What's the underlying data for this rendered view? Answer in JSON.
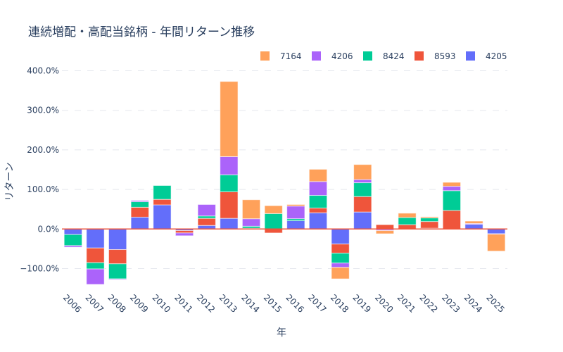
{
  "chart_data": {
    "type": "bar",
    "barmode": "relative",
    "title": "連続増配・高配当銘柄 - 年間リターン推移",
    "xlabel": "年",
    "ylabel": "リターン",
    "ylim": [
      -152,
      420
    ],
    "yticks": [
      -100,
      0,
      100,
      200,
      300,
      400
    ],
    "ytick_labels": [
      "−100.0%",
      "0.0%",
      "100.0%",
      "200.0%",
      "300.0%",
      "400.0%"
    ],
    "grid": true,
    "legend_position": "top-right",
    "categories": [
      "2006",
      "2007",
      "2008",
      "2009",
      "2010",
      "2011",
      "2012",
      "2013",
      "2014",
      "2015",
      "2016",
      "2017",
      "2018",
      "2019",
      "2020",
      "2021",
      "2022",
      "2023",
      "2024",
      "2025"
    ],
    "series": [
      {
        "name": "4205",
        "color": "#636efa",
        "values": [
          -14,
          -48,
          -52,
          30,
          61,
          -4,
          9,
          27,
          2,
          0,
          21,
          41,
          -38,
          43,
          -1,
          0,
          2,
          0,
          12,
          -12
        ]
      },
      {
        "name": "8593",
        "color": "#ef553b",
        "values": [
          0,
          -37,
          -36,
          25,
          14,
          -6,
          18,
          67,
          0,
          -10,
          0,
          12,
          -23,
          39,
          11,
          11,
          17,
          47,
          0,
          0
        ]
      },
      {
        "name": "8424",
        "color": "#00cc96",
        "values": [
          -28,
          -16,
          -38,
          14,
          35,
          0,
          6,
          43,
          5,
          39,
          5,
          32,
          -25,
          35,
          0,
          18,
          9,
          50,
          0,
          0
        ]
      },
      {
        "name": "4206",
        "color": "#ab63fa",
        "values": [
          -4,
          -39,
          -2,
          3,
          0,
          -7,
          29,
          46,
          19,
          0,
          32,
          35,
          -11,
          8,
          -3,
          0,
          0,
          11,
          2,
          -1
        ]
      },
      {
        "name": "7164",
        "color": "#ffa15a",
        "values": [
          0,
          0,
          0,
          0,
          0,
          0,
          0,
          190,
          48,
          20,
          4,
          31,
          -29,
          38,
          -8,
          11,
          3,
          10,
          6,
          -43
        ]
      }
    ],
    "legend_order": [
      "7164",
      "4206",
      "8424",
      "8593",
      "4205"
    ],
    "zero_line_color": "#ef553b"
  }
}
